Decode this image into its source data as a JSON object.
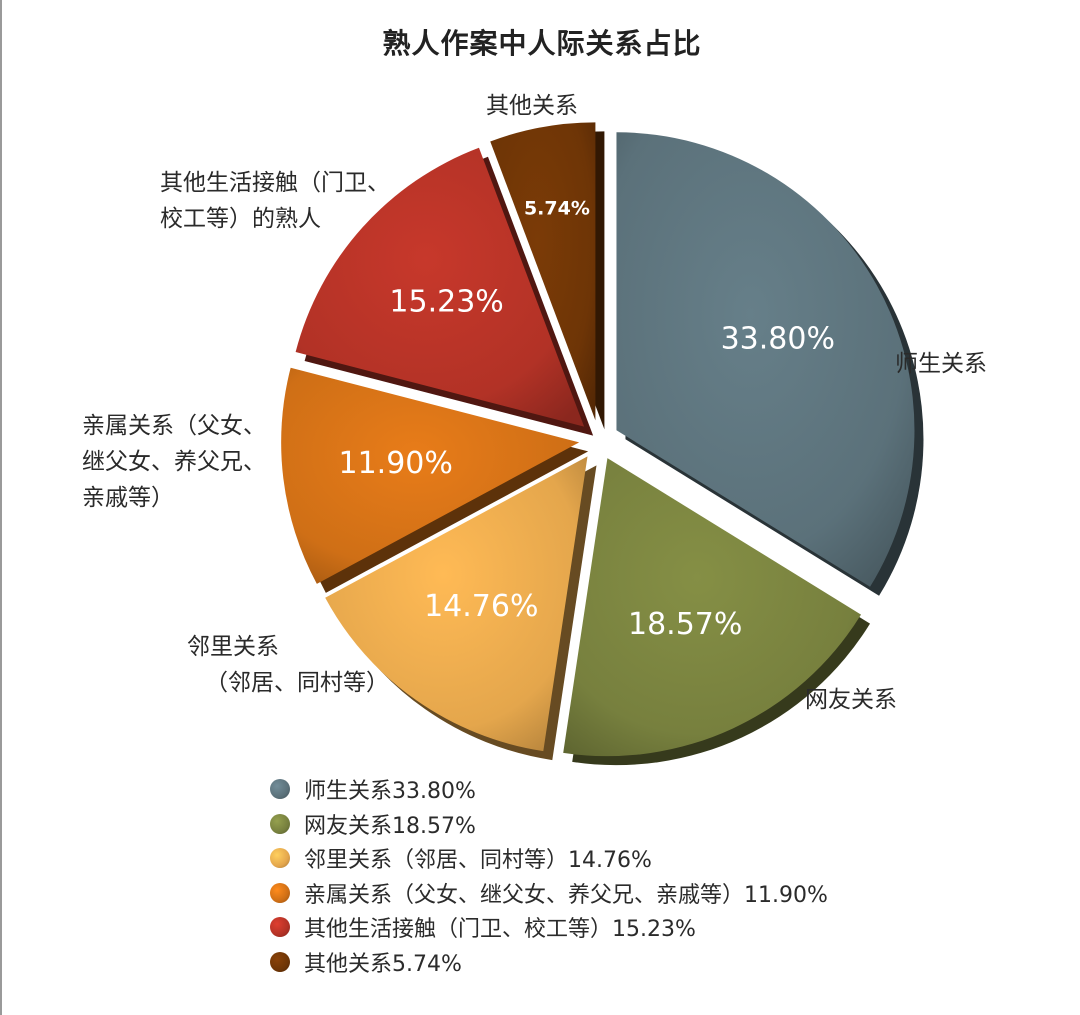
{
  "chart_data": {
    "type": "pie",
    "title": "熟人作案中人际关系占比",
    "slices": [
      {
        "name": "师生关系",
        "value": 33.8,
        "value_label": "33.80%",
        "category_label": [
          "师生关系"
        ],
        "legend_label": "师生关系33.80%",
        "color": "#5b717a"
      },
      {
        "name": "网友关系",
        "value": 18.57,
        "value_label": "18.57%",
        "category_label": [
          "网友关系"
        ],
        "legend_label": "网友关系18.57%",
        "color": "#77803e"
      },
      {
        "name": "邻里关系（邻居、同村等）",
        "value": 14.76,
        "value_label": "14.76%",
        "category_label": [
          "邻里关系",
          "（邻居、同村等）"
        ],
        "legend_label": "邻里关系（邻居、同村等）14.76%",
        "color": "#e4a64c"
      },
      {
        "name": "亲属关系（父女、继父女、养父兄、亲戚等）",
        "value": 11.9,
        "value_label": "11.90%",
        "category_label": [
          "亲属关系（父女、",
          "继父女、养父兄、",
          "亲戚等）"
        ],
        "legend_label": "亲属关系（父女、继父女、养父兄、亲戚等）11.90%",
        "color": "#cf6f16"
      },
      {
        "name": "其他生活接触（门卫、校工等）的熟人",
        "value": 15.23,
        "value_label": "15.23%",
        "category_label": [
          "其他生活接触（门卫、",
          "校工等）的熟人"
        ],
        "legend_label": "其他生活接触（门卫、校工等）15.23%",
        "color": "#b23226"
      },
      {
        "name": "其他关系",
        "value": 5.74,
        "value_label": "5.74%",
        "category_label": [
          "其他关系"
        ],
        "legend_label": "其他关系5.74%",
        "color": "#6e3506"
      }
    ]
  }
}
